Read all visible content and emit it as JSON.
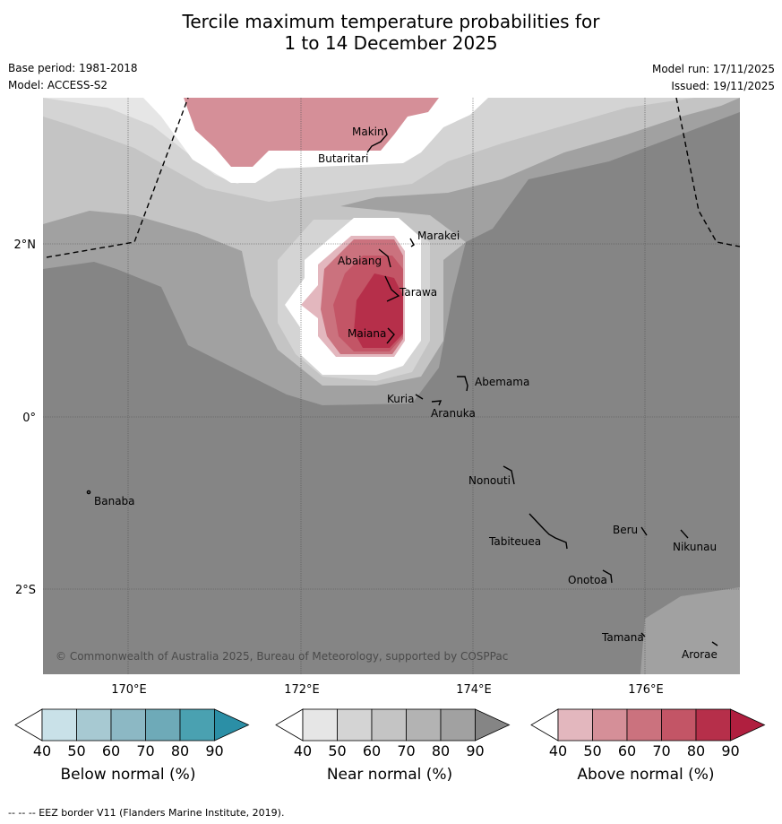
{
  "title": {
    "line1": "Tercile maximum temperature probabilities for",
    "line2": "1 to 14 December 2025"
  },
  "meta": {
    "base_period": "Base period: 1981-2018",
    "model": "Model: ACCESS-S2",
    "model_run": "Model run: 17/11/2025",
    "issued": "Issued: 19/11/2025"
  },
  "map": {
    "lat_labels": [
      "2°N",
      "0°",
      "2°S"
    ],
    "lon_labels": [
      "170°E",
      "172°E",
      "174°E",
      "176°E"
    ],
    "islands": [
      "Makin",
      "Butaritari",
      "Marakei",
      "Abaiang",
      "Tarawa",
      "Maiana",
      "Abemama",
      "Kuria",
      "Aranuka",
      "Nonouti",
      "Banaba",
      "Tabiteuea",
      "Beru",
      "Nikunau",
      "Onotoa",
      "Tamana",
      "Arorae"
    ],
    "copyright": "© Commonwealth of Australia 2025, Bureau of Meteorology, supported by COSPPac"
  },
  "colorbars": [
    {
      "title": "Below normal (%)",
      "colors": [
        "#ffffff",
        "#c9e1e8",
        "#a7c9d2",
        "#8cb8c4",
        "#6eaab8",
        "#4aa1b1",
        "#2b8fa6"
      ]
    },
    {
      "title": "Near normal (%)",
      "colors": [
        "#ffffff",
        "#e6e6e6",
        "#d4d4d4",
        "#c4c4c4",
        "#b3b3b3",
        "#a1a1a1",
        "#858585"
      ]
    },
    {
      "title": "Above normal (%)",
      "colors": [
        "#ffffff",
        "#e3b7be",
        "#d58f98",
        "#cb727e",
        "#c35566",
        "#b62f4a",
        "#b01f3f"
      ]
    }
  ],
  "colorbar_ticks": [
    "40",
    "50",
    "60",
    "70",
    "80",
    "90"
  ],
  "footnote": "--  --  -- EEZ border V11 (Flanders Marine Institute, 2019)."
}
